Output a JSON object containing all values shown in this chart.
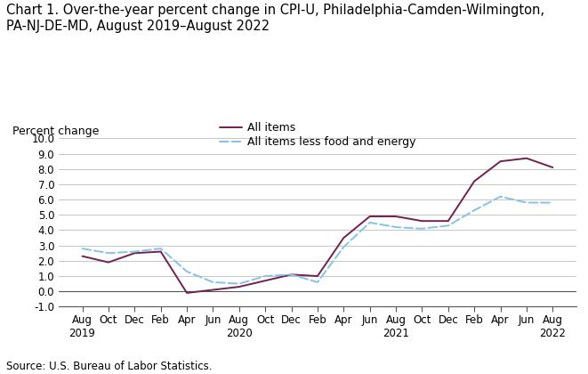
{
  "title": "Chart 1. Over-the-year percent change in CPI-U, Philadelphia-Camden-Wilmington,\nPA-NJ-DE-MD, August 2019–August 2022",
  "ylabel": "Percent change",
  "source": "Source: U.S. Bureau of Labor Statistics.",
  "ylim": [
    -1.0,
    10.0
  ],
  "ytick_vals": [
    -1.0,
    0.0,
    1.0,
    2.0,
    3.0,
    4.0,
    5.0,
    6.0,
    7.0,
    8.0,
    9.0,
    10.0
  ],
  "xtick_labels": [
    "Aug\n2019",
    "Oct",
    "Dec",
    "Feb",
    "Apr",
    "Jun",
    "Aug\n2020",
    "Oct",
    "Dec",
    "Feb",
    "Apr",
    "Jun",
    "Aug\n2021",
    "Oct",
    "Dec",
    "Feb",
    "Apr",
    "Jun",
    "Aug\n2022"
  ],
  "all_items": [
    2.3,
    1.9,
    2.5,
    2.6,
    -0.1,
    0.1,
    0.3,
    0.7,
    1.1,
    1.0,
    3.5,
    4.9,
    4.9,
    4.6,
    4.6,
    7.2,
    8.5,
    8.7,
    8.1
  ],
  "all_items_less": [
    2.8,
    2.5,
    2.6,
    2.8,
    1.3,
    0.6,
    0.5,
    1.0,
    1.1,
    0.6,
    2.9,
    4.5,
    4.2,
    4.1,
    4.3,
    5.3,
    6.2,
    5.8,
    5.8
  ],
  "all_items_color": "#722050",
  "all_items_less_color": "#85c1e9",
  "background_color": "#ffffff",
  "grid_color": "#bbbbbb",
  "title_fontsize": 10.5,
  "label_fontsize": 9,
  "tick_fontsize": 8.5,
  "legend_fontsize": 9,
  "source_fontsize": 8.5
}
